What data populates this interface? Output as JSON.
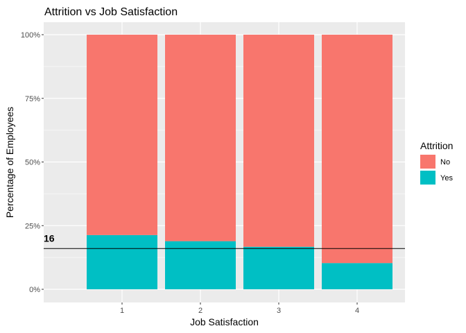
{
  "chart_data": {
    "type": "bar",
    "stacked": true,
    "percent": true,
    "title": "Attrition vs Job Satisfaction",
    "xlabel": "Job Satisfaction",
    "ylabel": "Percentage of Employees",
    "categories": [
      "1",
      "2",
      "3",
      "4"
    ],
    "ylim": [
      0,
      1
    ],
    "yticks": [
      0,
      0.25,
      0.5,
      0.75,
      1
    ],
    "ytick_labels": [
      "0%",
      "25%",
      "50%",
      "75%",
      "100%"
    ],
    "legend": {
      "title": "Attrition",
      "position": "right"
    },
    "series": [
      {
        "name": "No",
        "color": "#F8766D",
        "values": [
          0.787,
          0.811,
          0.833,
          0.897
        ]
      },
      {
        "name": "Yes",
        "color": "#00BFC4",
        "values": [
          0.213,
          0.189,
          0.167,
          0.103
        ]
      }
    ],
    "reference_line": {
      "y": 0.16,
      "label": "16",
      "color": "#000000"
    },
    "grid": true,
    "panel_background": "#EBEBEB",
    "grid_color": "#FFFFFF"
  }
}
